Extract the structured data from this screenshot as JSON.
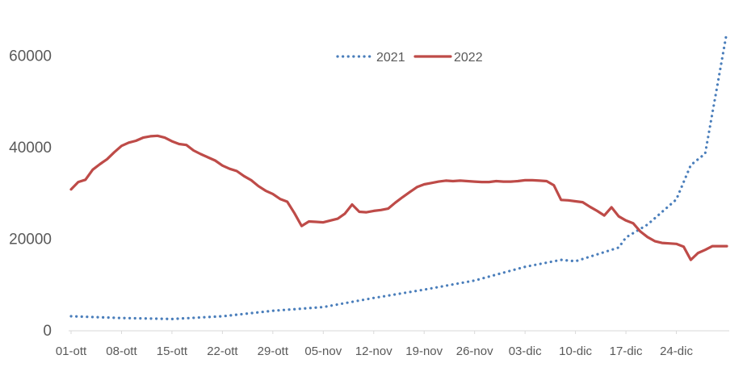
{
  "chart_data": {
    "type": "line",
    "title": "",
    "xlabel": "",
    "ylabel": "",
    "ylim": [
      0,
      65000
    ],
    "yticks": [
      "0",
      "20000",
      "40000",
      "60000"
    ],
    "ytick_values": [
      0,
      20000,
      40000,
      60000
    ],
    "grid": false,
    "legend_position": "top-center",
    "x_tick_labels": [
      "01-ott",
      "08-ott",
      "15-ott",
      "22-ott",
      "29-ott",
      "05-nov",
      "12-nov",
      "19-nov",
      "26-nov",
      "03-dic",
      "10-dic",
      "17-dic",
      "24-dic"
    ],
    "x_start": "01-ott",
    "x_end": "31-dic",
    "series": [
      {
        "name": "2021",
        "color": "#4a7ebb",
        "style": "dotted",
        "x_keys": [
          "01-ott",
          "08-ott",
          "15-ott",
          "22-ott",
          "29-ott",
          "05-nov",
          "12-nov",
          "19-nov",
          "26-nov",
          "03-dic",
          "08-dic",
          "10-dic",
          "16-dic",
          "17-dic",
          "20-dic",
          "24-dic",
          "26-dic",
          "28-dic",
          "31-dic"
        ],
        "values": [
          3000,
          2600,
          2400,
          3000,
          4200,
          5000,
          7000,
          8800,
          10800,
          13800,
          15300,
          15000,
          18000,
          20200,
          23000,
          28500,
          36000,
          38500,
          65000
        ]
      },
      {
        "name": "2022",
        "color": "#be4b48",
        "style": "solid",
        "x_keys": [
          "01-ott",
          "02-ott",
          "03-ott",
          "04-ott",
          "05-ott",
          "06-ott",
          "07-ott",
          "08-ott",
          "09-ott",
          "10-ott",
          "11-ott",
          "12-ott",
          "13-ott",
          "14-ott",
          "15-ott",
          "16-ott",
          "17-ott",
          "18-ott",
          "19-ott",
          "20-ott",
          "21-ott",
          "22-ott",
          "23-ott",
          "24-ott",
          "25-ott",
          "26-ott",
          "27-ott",
          "28-ott",
          "29-ott",
          "30-ott",
          "31-ott",
          "01-nov",
          "02-nov",
          "03-nov",
          "04-nov",
          "05-nov",
          "06-nov",
          "07-nov",
          "08-nov",
          "09-nov",
          "10-nov",
          "11-nov",
          "12-nov",
          "13-nov",
          "14-nov",
          "15-nov",
          "16-nov",
          "17-nov",
          "18-nov",
          "19-nov",
          "20-nov",
          "21-nov",
          "22-nov",
          "23-nov",
          "24-nov",
          "25-nov",
          "26-nov",
          "27-nov",
          "28-nov",
          "29-nov",
          "30-nov",
          "01-dic",
          "02-dic",
          "03-dic",
          "04-dic",
          "05-dic",
          "06-dic",
          "07-dic",
          "08-dic",
          "09-dic",
          "10-dic",
          "11-dic",
          "12-dic",
          "13-dic",
          "14-dic",
          "15-dic",
          "16-dic",
          "17-dic",
          "18-dic",
          "19-dic",
          "20-dic",
          "21-dic",
          "22-dic",
          "23-dic",
          "24-dic",
          "25-dic",
          "26-dic",
          "27-dic",
          "28-dic",
          "29-dic",
          "30-dic",
          "31-dic"
        ],
        "values": [
          30700,
          32300,
          32800,
          35000,
          36200,
          37300,
          38800,
          40200,
          40900,
          41300,
          42000,
          42300,
          42400,
          42000,
          41200,
          40600,
          40400,
          39200,
          38400,
          37700,
          37000,
          35900,
          35200,
          34700,
          33600,
          32700,
          31400,
          30400,
          29700,
          28600,
          28000,
          25500,
          22700,
          23700,
          23600,
          23500,
          23900,
          24300,
          25400,
          27400,
          25800,
          25700,
          26000,
          26200,
          26500,
          27800,
          29000,
          30100,
          31200,
          31800,
          32100,
          32400,
          32600,
          32500,
          32600,
          32500,
          32400,
          32300,
          32300,
          32500,
          32400,
          32400,
          32500,
          32700,
          32700,
          32600,
          32500,
          31600,
          28400,
          28300,
          28100,
          27900,
          26900,
          26000,
          25000,
          26800,
          24800,
          23900,
          23300,
          21500,
          20300,
          19400,
          19000,
          18900,
          18800,
          18200,
          15300,
          16800,
          17500,
          18300,
          18300,
          18300
        ]
      }
    ]
  }
}
